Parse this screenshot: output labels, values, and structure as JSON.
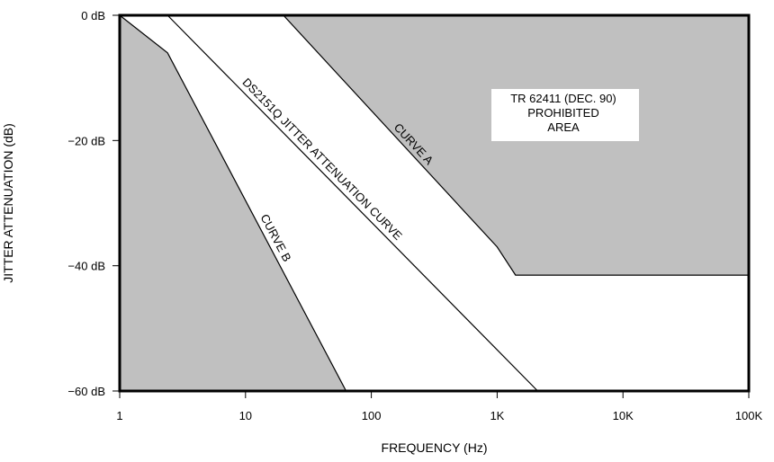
{
  "chart_data": {
    "type": "area",
    "xlabel": "FREQUENCY (Hz)",
    "ylabel": "JITTER ATTENUATION (dB)",
    "x_scale": "log",
    "xlim": [
      1,
      100000
    ],
    "ylim": [
      -60,
      0
    ],
    "x_ticks": [
      {
        "value": 1,
        "label": "1"
      },
      {
        "value": 10,
        "label": "10"
      },
      {
        "value": 100,
        "label": "100"
      },
      {
        "value": 1000,
        "label": "1K"
      },
      {
        "value": 10000,
        "label": "10K"
      },
      {
        "value": 100000,
        "label": "100K"
      }
    ],
    "y_ticks": [
      {
        "value": 0,
        "label": "0 dB"
      },
      {
        "value": -20,
        "label": "−20 dB"
      },
      {
        "value": -40,
        "label": "−40 dB"
      },
      {
        "value": -60,
        "label": "−60 dB"
      }
    ],
    "grid": false,
    "colors": {
      "prohibited_fill": "#c0c0c0",
      "line": "#000000",
      "background": "#ffffff"
    },
    "series": [
      {
        "name": "CURVE A",
        "points": [
          [
            1,
            0
          ],
          [
            20,
            0
          ],
          [
            1000,
            -37
          ],
          [
            1400,
            -41.5
          ],
          [
            100000,
            -41.5
          ]
        ]
      },
      {
        "name": "CURVE B",
        "points": [
          [
            1,
            0
          ],
          [
            2.4,
            -6
          ],
          [
            63,
            -60
          ]
        ]
      },
      {
        "name": "DS2151Q JITTER ATTENUATION CURVE",
        "points": [
          [
            2.4,
            0
          ],
          [
            2100,
            -60
          ]
        ]
      }
    ],
    "regions": [
      {
        "boundary": "CURVE A",
        "side": "above",
        "label": [
          "TR 62411 (DEC. 90)",
          "PROHIBITED",
          "AREA"
        ]
      },
      {
        "boundary": "CURVE B",
        "side": "below",
        "label": []
      }
    ],
    "annotations": [
      {
        "text": "CURVE A",
        "series": "CURVE A"
      },
      {
        "text": "CURVE B",
        "series": "CURVE B"
      },
      {
        "text": "DS2151Q JITTER ATTENUATION CURVE",
        "series": "DS2151Q JITTER ATTENUATION CURVE"
      }
    ]
  }
}
